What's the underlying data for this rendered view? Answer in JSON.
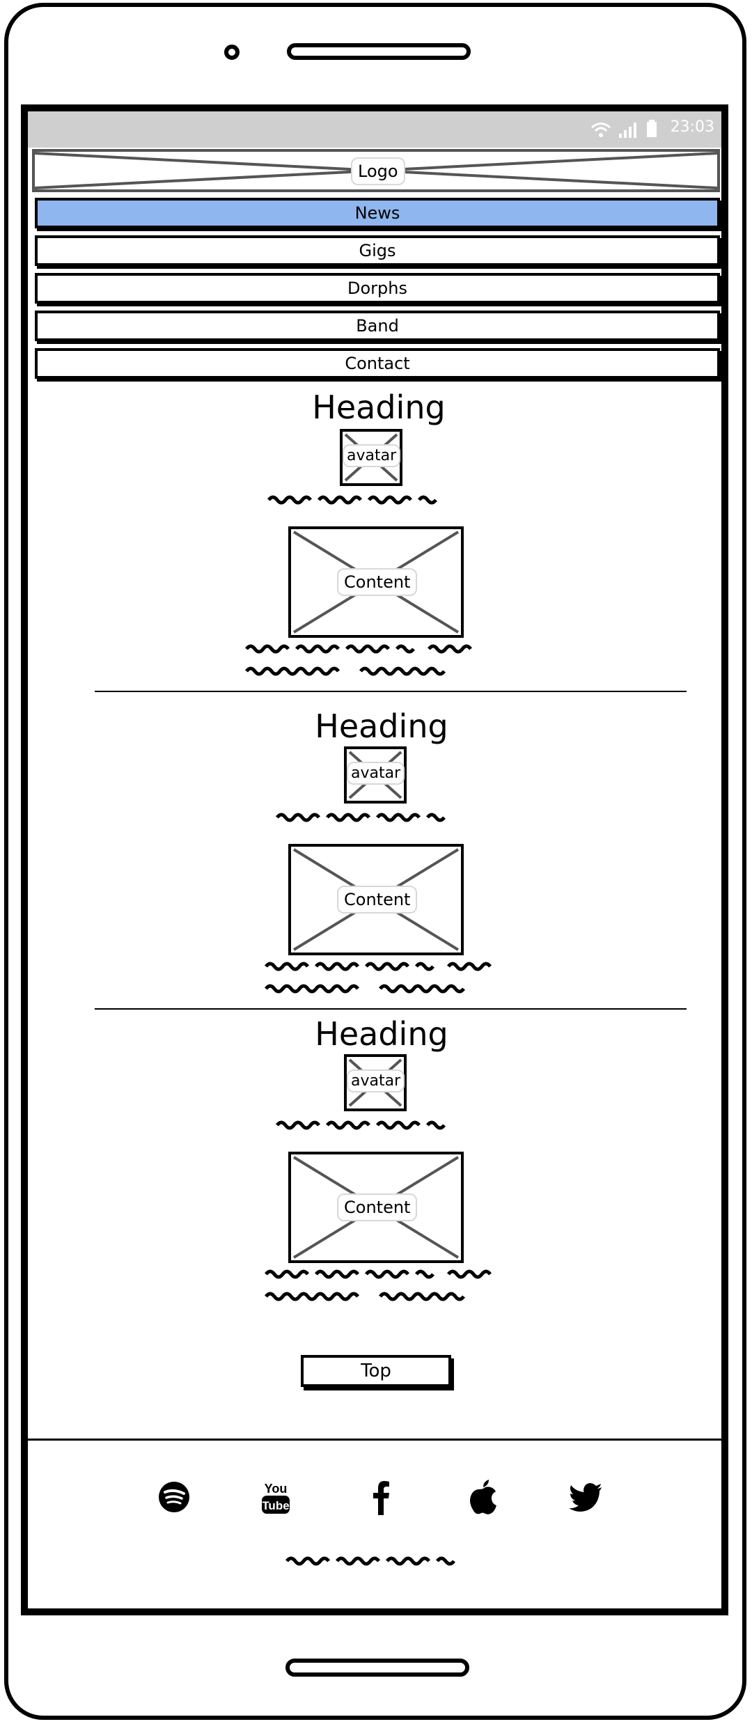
{
  "status_bar": {
    "time": "23:03"
  },
  "logo": {
    "label": "Logo"
  },
  "nav": {
    "items": [
      {
        "label": "News",
        "active": true
      },
      {
        "label": "Gigs",
        "active": false
      },
      {
        "label": "Dorphs",
        "active": false
      },
      {
        "label": "Band",
        "active": false
      },
      {
        "label": "Contact",
        "active": false
      }
    ]
  },
  "articles": [
    {
      "heading": "Heading",
      "avatar_label": "avatar",
      "content_label": "Content"
    },
    {
      "heading": "Heading",
      "avatar_label": "avatar",
      "content_label": "Content"
    },
    {
      "heading": "Heading",
      "avatar_label": "avatar",
      "content_label": "Content"
    }
  ],
  "top_button": {
    "label": "Top"
  },
  "footer": {
    "social_icons": [
      "spotify-icon",
      "youtube-icon",
      "facebook-icon",
      "apple-icon",
      "twitter-icon"
    ]
  },
  "colors": {
    "nav_active": "#8fb6ee",
    "status_bar": "#cfcfcf"
  }
}
